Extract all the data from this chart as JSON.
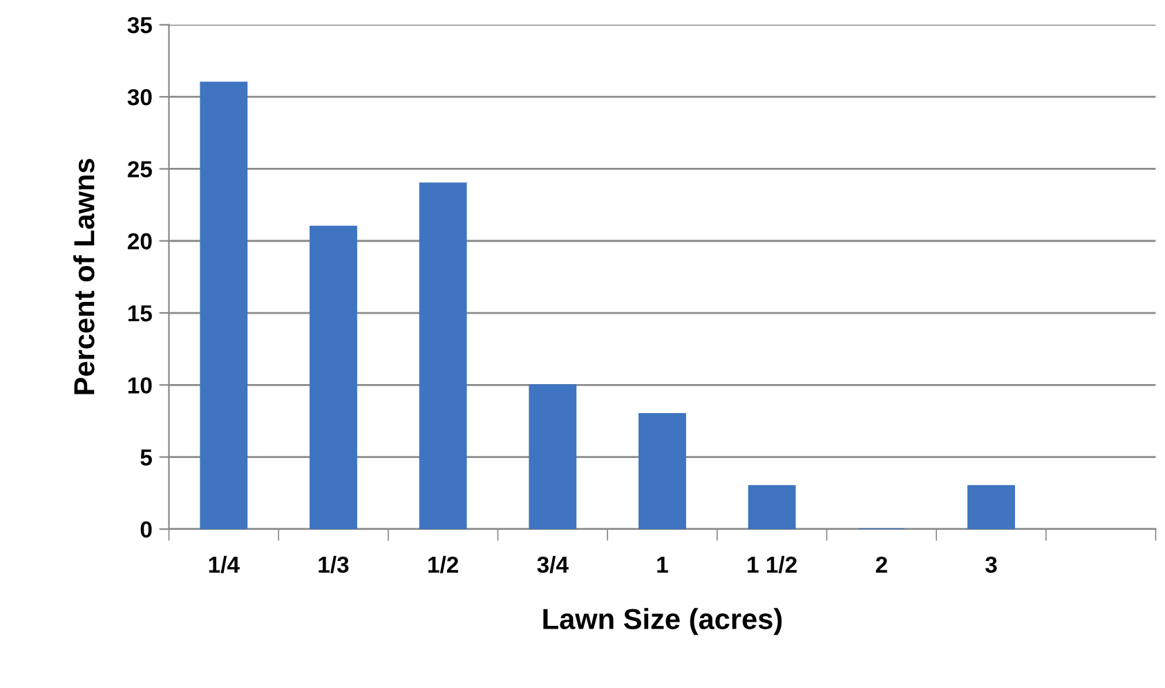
{
  "chart_data": {
    "type": "bar",
    "xlabel": "Lawn Size (acres)",
    "ylabel": "Percent of Lawns",
    "categories": [
      "1/4",
      "1/3",
      "1/2",
      "3/4",
      "1",
      "1 1/2",
      "2",
      "3",
      null
    ],
    "values": [
      31,
      21,
      24,
      10,
      8,
      3,
      0,
      3,
      null
    ],
    "color": "#3f74c0",
    "ylim": [
      0,
      35
    ],
    "yticks": [
      0,
      5,
      10,
      15,
      20,
      25,
      30,
      35
    ],
    "grid": "y",
    "legend": false
  }
}
